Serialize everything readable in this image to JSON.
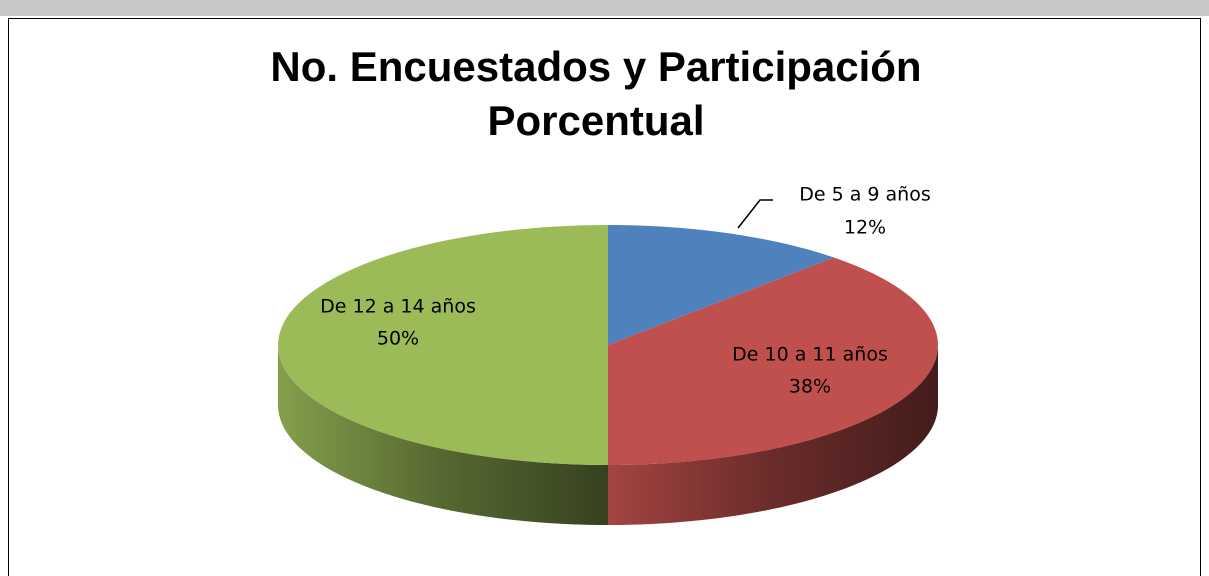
{
  "chart_data": {
    "type": "pie3d",
    "title": "No. Encuestados y Participación Porcentual",
    "categories": [
      "De 5 a 9 años",
      "De 10 a 11 años",
      "De 12 a 14 años"
    ],
    "values": [
      12,
      38,
      50
    ],
    "value_labels": [
      "12%",
      "38%",
      "50%"
    ],
    "colors": [
      "#4f81bd",
      "#c0504d",
      "#9bbb59"
    ]
  }
}
